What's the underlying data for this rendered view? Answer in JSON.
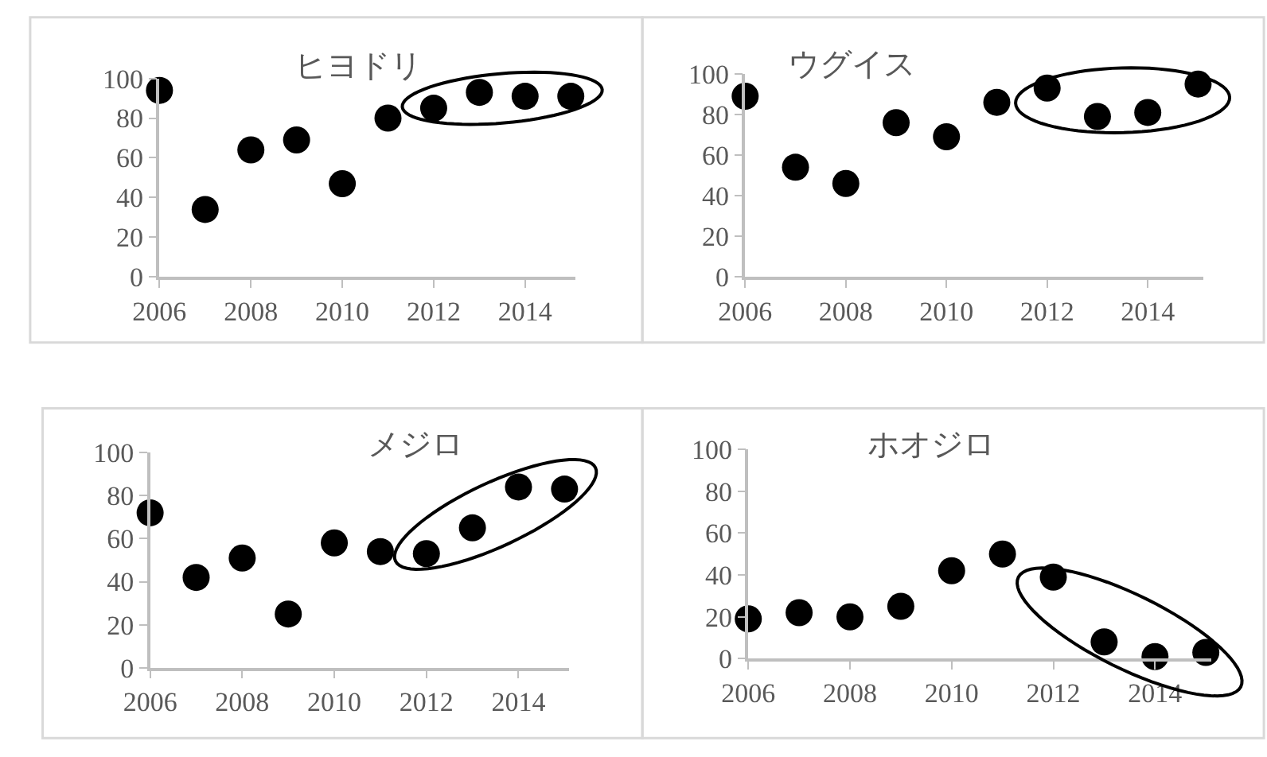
{
  "chart_data": [
    {
      "type": "scatter",
      "title": "ヒヨドリ",
      "x": [
        2006,
        2007,
        2008,
        2009,
        2010,
        2011,
        2012,
        2013,
        2014,
        2015
      ],
      "series": [
        {
          "color": "#000000",
          "values": [
            94,
            34,
            64,
            69,
            47,
            80,
            85,
            93,
            91,
            91
          ]
        }
      ],
      "xlim": [
        2006,
        2015.1
      ],
      "xticks": [
        2006,
        2008,
        2010,
        2012,
        2014
      ],
      "ylim": [
        0,
        100
      ],
      "yticks": [
        0,
        20,
        40,
        60,
        80,
        100
      ],
      "marker": "circle"
    },
    {
      "type": "scatter",
      "title": "ウグイス",
      "x": [
        2006,
        2007,
        2008,
        2009,
        2010,
        2011,
        2012,
        2013,
        2014,
        2015
      ],
      "series": [
        {
          "color": "#000000",
          "values": [
            89,
            54,
            46,
            76,
            69,
            86,
            93,
            79,
            81,
            95
          ]
        }
      ],
      "xlim": [
        2006,
        2015.1
      ],
      "xticks": [
        2006,
        2008,
        2010,
        2012,
        2014
      ],
      "ylim": [
        0,
        100
      ],
      "yticks": [
        0,
        20,
        40,
        60,
        80,
        100
      ],
      "marker": "circle"
    },
    {
      "type": "scatter",
      "title": "メジロ",
      "x": [
        2006,
        2007,
        2008,
        2009,
        2010,
        2011,
        2012,
        2013,
        2014,
        2015
      ],
      "series": [
        {
          "color": "#000000",
          "values": [
            72,
            42,
            51,
            25,
            58,
            54,
            53,
            65,
            84,
            83
          ]
        }
      ],
      "xlim": [
        2006,
        2015.1
      ],
      "xticks": [
        2006,
        2008,
        2010,
        2012,
        2014
      ],
      "ylim": [
        0,
        100
      ],
      "yticks": [
        0,
        20,
        40,
        60,
        80,
        100
      ],
      "marker": "circle"
    },
    {
      "type": "scatter",
      "title": "ホオジロ",
      "x": [
        2006,
        2007,
        2008,
        2009,
        2010,
        2011,
        2012,
        2013,
        2014,
        2015
      ],
      "series": [
        {
          "color": "#000000",
          "values": [
            19,
            22,
            20,
            25,
            42,
            50,
            39,
            8,
            1,
            3
          ]
        }
      ],
      "xlim": [
        2006,
        2015.1
      ],
      "xticks": [
        2006,
        2008,
        2010,
        2012,
        2014
      ],
      "ylim": [
        0,
        100
      ],
      "yticks": [
        0,
        20,
        40,
        60,
        80,
        100
      ],
      "marker": "circle"
    }
  ]
}
